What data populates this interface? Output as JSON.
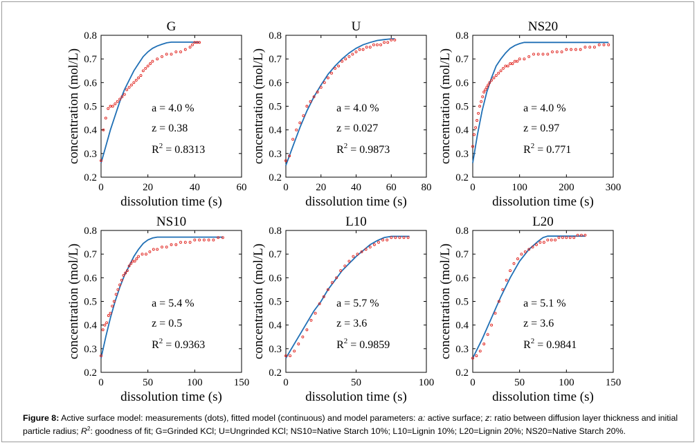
{
  "caption": {
    "lead": "Figure 8:",
    "text1": " Active surface model: measurements (dots), fitted model (continuous) and model parameters: ",
    "a_sym": "a:",
    "text2": "  active surface; ",
    "z_sym": "z",
    "text3": ": ratio between diffusion layer thickness and initial particle radius; ",
    "r2_sym": "R",
    "r2_sup": "2",
    "text4": ": goodness of fit; G=Grinded KCl; U=Ungrinded KCl; NS10=Native Starch 10%; L10=Lignin 10%; L20=Lignin 20%; NS20=Native Starch 20%."
  },
  "colors": {
    "fit": "#1f6fb5",
    "measured": "#e0201b",
    "axis": "#000000"
  },
  "chart_data": [
    {
      "type": "scatter",
      "title": "G",
      "xlabel": "dissolution time (s)",
      "ylabel": "concentration (mol/L)",
      "xlim": [
        0,
        60
      ],
      "ylim": [
        0.2,
        0.8
      ],
      "xticks": [
        0,
        20,
        40,
        60
      ],
      "yticks": [
        0.2,
        0.3,
        0.4,
        0.5,
        0.6,
        0.7,
        0.8
      ],
      "params": {
        "a": "a = 4.0 %",
        "z": "z = 0.38",
        "r2_prefix": "R",
        "r2_sup": "2",
        "r2_value": " = 0.8313"
      },
      "fit": {
        "x": [
          0,
          2,
          4,
          6,
          8,
          10,
          12,
          14,
          16,
          18,
          20,
          22,
          24,
          26,
          28,
          30,
          32,
          34,
          36,
          38,
          40,
          42
        ],
        "y": [
          0.26,
          0.33,
          0.4,
          0.46,
          0.52,
          0.57,
          0.61,
          0.65,
          0.68,
          0.71,
          0.73,
          0.745,
          0.755,
          0.762,
          0.768,
          0.771,
          0.771,
          0.771,
          0.771,
          0.771,
          0.771,
          0.771
        ]
      },
      "measured": {
        "x": [
          0,
          1,
          2,
          3,
          4,
          5,
          6,
          7,
          8,
          9,
          10,
          11,
          12,
          13,
          14,
          15,
          16,
          17,
          18,
          19,
          20,
          21,
          22,
          24,
          26,
          28,
          30,
          32,
          34,
          36,
          38,
          39,
          40,
          41,
          42
        ],
        "y": [
          0.27,
          0.4,
          0.45,
          0.49,
          0.5,
          0.5,
          0.51,
          0.52,
          0.53,
          0.54,
          0.55,
          0.57,
          0.58,
          0.59,
          0.6,
          0.61,
          0.62,
          0.63,
          0.65,
          0.66,
          0.67,
          0.68,
          0.69,
          0.7,
          0.71,
          0.72,
          0.72,
          0.73,
          0.73,
          0.74,
          0.75,
          0.76,
          0.77,
          0.77,
          0.77
        ]
      }
    },
    {
      "type": "scatter",
      "title": "U",
      "xlabel": "dissolution time (s)",
      "ylabel": "concentration (mol/L)",
      "xlim": [
        0,
        80
      ],
      "ylim": [
        0.2,
        0.8
      ],
      "xticks": [
        0,
        20,
        40,
        60,
        80
      ],
      "yticks": [
        0.2,
        0.3,
        0.4,
        0.5,
        0.6,
        0.7,
        0.8
      ],
      "params": {
        "a": "a = 4.0 %",
        "z": "z = 0.027",
        "r2_prefix": "R",
        "r2_sup": "2",
        "r2_value": " = 0.9873"
      },
      "fit": {
        "x": [
          0,
          4,
          8,
          12,
          16,
          20,
          24,
          28,
          32,
          36,
          40,
          44,
          48,
          52,
          56,
          60,
          62
        ],
        "y": [
          0.25,
          0.33,
          0.41,
          0.48,
          0.54,
          0.59,
          0.635,
          0.67,
          0.7,
          0.725,
          0.745,
          0.76,
          0.77,
          0.778,
          0.782,
          0.785,
          0.785
        ]
      },
      "measured": {
        "x": [
          0,
          2,
          4,
          6,
          8,
          10,
          12,
          14,
          16,
          18,
          20,
          22,
          24,
          26,
          28,
          30,
          32,
          34,
          36,
          38,
          40,
          42,
          44,
          46,
          48,
          50,
          52,
          54,
          56,
          58,
          60,
          62
        ],
        "y": [
          0.27,
          0.29,
          0.36,
          0.4,
          0.43,
          0.46,
          0.5,
          0.52,
          0.54,
          0.56,
          0.58,
          0.6,
          0.62,
          0.64,
          0.66,
          0.67,
          0.69,
          0.7,
          0.71,
          0.72,
          0.73,
          0.74,
          0.74,
          0.75,
          0.75,
          0.76,
          0.76,
          0.76,
          0.77,
          0.77,
          0.78,
          0.78
        ]
      }
    },
    {
      "type": "scatter",
      "title": "NS20",
      "xlabel": "dissolution time (s)",
      "ylabel": "concentration (mol/L)",
      "xlim": [
        0,
        300
      ],
      "ylim": [
        0.2,
        0.8
      ],
      "xticks": [
        0,
        100,
        200,
        300
      ],
      "yticks": [
        0.2,
        0.3,
        0.4,
        0.5,
        0.6,
        0.7,
        0.8
      ],
      "params": {
        "a": "a = 4.0 %",
        "z": "z = 0.97",
        "r2_prefix": "R",
        "r2_sup": "2",
        "r2_value": " = 0.771"
      },
      "fit": {
        "x": [
          0,
          10,
          20,
          30,
          40,
          50,
          60,
          70,
          80,
          90,
          100,
          110,
          120,
          150,
          200,
          250,
          290
        ],
        "y": [
          0.26,
          0.38,
          0.48,
          0.56,
          0.62,
          0.67,
          0.7,
          0.725,
          0.745,
          0.757,
          0.765,
          0.77,
          0.77,
          0.77,
          0.77,
          0.77,
          0.77
        ]
      },
      "measured": {
        "x": [
          0,
          3,
          6,
          9,
          12,
          15,
          18,
          21,
          24,
          27,
          30,
          33,
          36,
          40,
          45,
          50,
          55,
          60,
          65,
          70,
          75,
          80,
          85,
          90,
          95,
          100,
          110,
          120,
          130,
          140,
          150,
          160,
          170,
          180,
          190,
          200,
          210,
          220,
          230,
          240,
          250,
          260,
          270,
          280,
          290
        ],
        "y": [
          0.33,
          0.38,
          0.41,
          0.44,
          0.47,
          0.5,
          0.52,
          0.54,
          0.56,
          0.57,
          0.58,
          0.59,
          0.6,
          0.61,
          0.62,
          0.63,
          0.64,
          0.65,
          0.66,
          0.67,
          0.67,
          0.68,
          0.68,
          0.69,
          0.69,
          0.7,
          0.7,
          0.71,
          0.72,
          0.72,
          0.72,
          0.72,
          0.73,
          0.73,
          0.73,
          0.74,
          0.74,
          0.74,
          0.74,
          0.75,
          0.75,
          0.75,
          0.76,
          0.76,
          0.76
        ]
      }
    },
    {
      "type": "scatter",
      "title": "NS10",
      "xlabel": "dissolution time (s)",
      "ylabel": "concentration (mol/L)",
      "xlim": [
        0,
        150
      ],
      "ylim": [
        0.2,
        0.8
      ],
      "xticks": [
        0,
        50,
        100,
        150
      ],
      "yticks": [
        0.2,
        0.3,
        0.4,
        0.5,
        0.6,
        0.7,
        0.8
      ],
      "params": {
        "a": "a = 5.4 %",
        "z": "z = 0.5",
        "r2_prefix": "R",
        "r2_sup": "2",
        "r2_value": " = 0.9363"
      },
      "fit": {
        "x": [
          0,
          5,
          10,
          15,
          20,
          25,
          30,
          35,
          40,
          45,
          50,
          55,
          60,
          65,
          80,
          100,
          130
        ],
        "y": [
          0.26,
          0.35,
          0.43,
          0.5,
          0.56,
          0.61,
          0.65,
          0.69,
          0.72,
          0.745,
          0.76,
          0.768,
          0.772,
          0.772,
          0.772,
          0.772,
          0.772
        ]
      },
      "measured": {
        "x": [
          0,
          2,
          4,
          6,
          8,
          10,
          12,
          14,
          16,
          18,
          20,
          22,
          24,
          26,
          28,
          30,
          32,
          34,
          36,
          38,
          40,
          44,
          48,
          52,
          56,
          60,
          65,
          70,
          75,
          80,
          85,
          90,
          95,
          100,
          105,
          110,
          115,
          120,
          125,
          130
        ],
        "y": [
          0.27,
          0.38,
          0.4,
          0.41,
          0.44,
          0.45,
          0.48,
          0.5,
          0.53,
          0.55,
          0.57,
          0.59,
          0.61,
          0.62,
          0.63,
          0.65,
          0.66,
          0.67,
          0.67,
          0.68,
          0.69,
          0.7,
          0.7,
          0.71,
          0.72,
          0.72,
          0.73,
          0.73,
          0.74,
          0.74,
          0.75,
          0.75,
          0.75,
          0.76,
          0.76,
          0.76,
          0.76,
          0.76,
          0.77,
          0.77
        ]
      }
    },
    {
      "type": "scatter",
      "title": "L10",
      "xlabel": "dissolution time (s)",
      "ylabel": "concentration (mol/L)",
      "xlim": [
        0,
        100
      ],
      "ylim": [
        0.2,
        0.8
      ],
      "xticks": [
        0,
        50,
        100
      ],
      "yticks": [
        0.2,
        0.3,
        0.4,
        0.5,
        0.6,
        0.7,
        0.8
      ],
      "params": {
        "a": "a = 5.7 %",
        "z": "z = 3.6",
        "r2_prefix": "R",
        "r2_sup": "2",
        "r2_value": " = 0.9859"
      },
      "fit": {
        "x": [
          0,
          5,
          10,
          15,
          20,
          25,
          30,
          35,
          40,
          45,
          50,
          55,
          60,
          65,
          70,
          75,
          80,
          88
        ],
        "y": [
          0.26,
          0.31,
          0.36,
          0.41,
          0.46,
          0.5,
          0.55,
          0.59,
          0.63,
          0.66,
          0.69,
          0.715,
          0.74,
          0.757,
          0.77,
          0.775,
          0.775,
          0.775
        ]
      },
      "measured": {
        "x": [
          0,
          3,
          6,
          9,
          12,
          15,
          18,
          21,
          24,
          27,
          30,
          33,
          36,
          39,
          42,
          45,
          48,
          51,
          54,
          57,
          60,
          63,
          66,
          69,
          72,
          75,
          78,
          81,
          84,
          87
        ],
        "y": [
          0.27,
          0.27,
          0.29,
          0.32,
          0.35,
          0.38,
          0.42,
          0.45,
          0.49,
          0.52,
          0.55,
          0.58,
          0.6,
          0.63,
          0.65,
          0.67,
          0.69,
          0.7,
          0.71,
          0.72,
          0.73,
          0.74,
          0.75,
          0.76,
          0.76,
          0.77,
          0.77,
          0.77,
          0.77,
          0.77
        ]
      }
    },
    {
      "type": "scatter",
      "title": "L20",
      "xlabel": "dissolution time (s)",
      "ylabel": "concentration (mol/L)",
      "xlim": [
        0,
        150
      ],
      "ylim": [
        0.2,
        0.8
      ],
      "xticks": [
        0,
        50,
        100,
        150
      ],
      "yticks": [
        0.2,
        0.3,
        0.4,
        0.5,
        0.6,
        0.7,
        0.8
      ],
      "params": {
        "a": "a = 5.1 %",
        "z": "z = 3.6",
        "r2_prefix": "R",
        "r2_sup": "2",
        "r2_value": " = 0.9841"
      },
      "fit": {
        "x": [
          0,
          10,
          20,
          30,
          40,
          50,
          60,
          70,
          75,
          80,
          90,
          100,
          110,
          120
        ],
        "y": [
          0.26,
          0.34,
          0.43,
          0.52,
          0.6,
          0.67,
          0.72,
          0.755,
          0.77,
          0.776,
          0.776,
          0.776,
          0.776,
          0.776
        ]
      },
      "measured": {
        "x": [
          0,
          4,
          8,
          12,
          16,
          20,
          24,
          28,
          32,
          36,
          40,
          44,
          48,
          52,
          56,
          60,
          64,
          68,
          72,
          76,
          80,
          84,
          88,
          92,
          96,
          100,
          104,
          108,
          112,
          116,
          120
        ],
        "y": [
          0.26,
          0.27,
          0.29,
          0.32,
          0.36,
          0.4,
          0.45,
          0.5,
          0.55,
          0.59,
          0.63,
          0.66,
          0.68,
          0.7,
          0.71,
          0.72,
          0.73,
          0.74,
          0.75,
          0.75,
          0.76,
          0.76,
          0.76,
          0.77,
          0.77,
          0.77,
          0.77,
          0.77,
          0.78,
          0.78,
          0.78
        ]
      }
    }
  ]
}
